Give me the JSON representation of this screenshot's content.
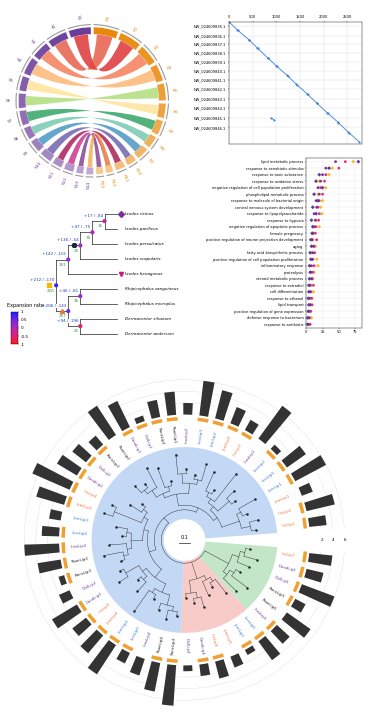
{
  "chart_data": [
    {
      "type": "chord",
      "left": {
        "labels": [
          "S1",
          "S2",
          "S3",
          "S4",
          "S5",
          "S6",
          "S7",
          "S8",
          "S9",
          "S10",
          "S11",
          "S12",
          "S13",
          "S14"
        ],
        "lengths": [
          9,
          8,
          7,
          7,
          6,
          6,
          6,
          5,
          5,
          5,
          4,
          4,
          3,
          3
        ],
        "color": "#6a3d9a"
      },
      "right": {
        "labels": [
          "R1",
          "R2",
          "R3",
          "R4",
          "R5",
          "R6",
          "R7",
          "R8",
          "R9",
          "R10",
          "R11",
          "R12",
          "R13"
        ],
        "lengths": [
          10,
          9,
          8,
          7,
          7,
          6,
          6,
          5,
          5,
          4,
          4,
          3,
          3
        ],
        "color": "#e8890c"
      },
      "links": [
        {
          "from": "S1",
          "to": "R2",
          "color": "#d7191c"
        },
        {
          "from": "S2",
          "to": "R1",
          "color": "#e34a33"
        },
        {
          "from": "S3",
          "to": "R3",
          "color": "#f46d43"
        },
        {
          "from": "S4",
          "to": "R4",
          "color": "#fdae61"
        },
        {
          "from": "S5",
          "to": "R6",
          "color": "#fee08b"
        },
        {
          "from": "S6",
          "to": "R5",
          "color": "#a6d96a"
        },
        {
          "from": "S7",
          "to": "R7",
          "color": "#1a9850"
        },
        {
          "from": "S8",
          "to": "R8",
          "color": "#66c2a5"
        },
        {
          "from": "S9",
          "to": "R9",
          "color": "#3288bd"
        },
        {
          "from": "S10",
          "to": "R10",
          "color": "#5e4fa2"
        },
        {
          "from": "S11",
          "to": "R11",
          "color": "#9e0142"
        },
        {
          "from": "S12",
          "to": "R12",
          "color": "#c51b7d"
        },
        {
          "from": "S13",
          "to": "R13",
          "color": "#762a83"
        },
        {
          "from": "S14",
          "to": "R12",
          "color": "#f1a340"
        }
      ]
    },
    {
      "type": "dotplot",
      "color": "#3b7fd9",
      "grid": true,
      "segments": [
        [
          0,
          180,
          0,
          190
        ],
        [
          190,
          420,
          200,
          410
        ],
        [
          430,
          600,
          420,
          600
        ],
        [
          610,
          820,
          610,
          830
        ],
        [
          830,
          1000,
          840,
          1010
        ],
        [
          1010,
          1230,
          1020,
          1230
        ],
        [
          1240,
          1420,
          1240,
          1430
        ],
        [
          1430,
          1650,
          1440,
          1650
        ],
        [
          1660,
          1850,
          1660,
          1860
        ],
        [
          1860,
          2080,
          1870,
          2090
        ],
        [
          2090,
          2300,
          2100,
          2300
        ],
        [
          2310,
          2520,
          2310,
          2530
        ],
        [
          2530,
          2750,
          2540,
          2750
        ],
        [
          900,
          960,
          2200,
          2260
        ]
      ],
      "xlim": [
        0,
        2800
      ],
      "xticks": [
        0,
        500,
        1000,
        1500,
        2000,
        2500
      ],
      "ylim": [
        2800,
        0
      ],
      "yticks": [
        {
          "value": 100,
          "label": "NW_024609835.1"
        },
        {
          "value": 320,
          "label": "NW_024609836.1"
        },
        {
          "value": 520,
          "label": "NW_024609837.1"
        },
        {
          "value": 720,
          "label": "NW_024609838.1"
        },
        {
          "value": 930,
          "label": "NW_024609839.1"
        },
        {
          "value": 1130,
          "label": "NW_024609840.1"
        },
        {
          "value": 1340,
          "label": "NW_024609841.1"
        },
        {
          "value": 1550,
          "label": "NW_024609842.1"
        },
        {
          "value": 1760,
          "label": "NW_024609843.1"
        },
        {
          "value": 1980,
          "label": "NW_024609844.1"
        },
        {
          "value": 2200,
          "label": "NW_024609845.1"
        },
        {
          "value": 2420,
          "label": "NW_024609846.1"
        }
      ]
    },
    {
      "type": "tree",
      "colorbar": {
        "title": "Expansion rate",
        "range": [
          -1,
          1
        ],
        "ticks": [
          1,
          0.5,
          0,
          -0.5,
          -1
        ],
        "colors": [
          "#ff1a1a",
          "#d6248f",
          "#8e2bd6",
          "#1f1fff"
        ]
      },
      "tree": {
        "gain_loss": "+212 / -170",
        "count": 226,
        "rate": 0.8,
        "marker": "square",
        "color": "#f5b800",
        "children": [
          {
            "gain_loss": "+142 / -101",
            "count": 151,
            "rate": 0.3,
            "children": [
              {
                "gain_loss": "+136 / -54",
                "count": 25,
                "rate": 0.2,
                "marker": "circle",
                "color": "#1c2541",
                "children": [
                  {
                    "gain_loss": "+47 / -75",
                    "count": 76,
                    "rate": 0.1,
                    "children": [
                      {
                        "gain_loss": "+17 / -84",
                        "count": 16,
                        "rate": -0.1,
                        "children": [
                          {
                            "name": "Ixodes ricinus",
                            "marker": "diamond",
                            "color": "#7b3294"
                          },
                          {
                            "name": "Ixodes pacificus"
                          }
                        ]
                      },
                      {
                        "name": "Ixodes persulcatus"
                      }
                    ]
                  },
                  {
                    "name": "Ixodes scapularis"
                  }
                ]
              },
              {
                "name": "Ixodes hexagonus",
                "marker": "triangle_down",
                "color": "#c51b7d"
              }
            ]
          },
          {
            "gain_loss": "+206 / -143",
            "count": 257,
            "rate": 0.5,
            "marker": "triangle",
            "color": "#e8743b",
            "children": [
              {
                "gain_loss": "+46 / -81",
                "count": 16,
                "rate": 0.2,
                "children": [
                  {
                    "name": "Rhipicephalus sanguineus"
                  },
                  {
                    "name": "Rhipicephalus microplus"
                  }
                ]
              },
              {
                "gain_loss": "+94 / -196",
                "count": 21,
                "rate": -0.5,
                "children": [
                  {
                    "name": "Dermacentor silvarum"
                  },
                  {
                    "name": "Dermacentor andersoni"
                  }
                ]
              }
            ]
          }
        ]
      }
    },
    {
      "type": "scatter",
      "orientation": "horizontal",
      "grid": true,
      "categories": [
        "lipid metabolic process",
        "response to xenobiotic stimulus",
        "response to toxic substance",
        "response to oxidative stress",
        "negative regulation of cell population proliferation",
        "phospholipid metabolic process",
        "response to molecule of bacterial origin",
        "central nervous system development",
        "response to lipopolysaccharide",
        "response to hypoxia",
        "negative regulation of apoptotic process",
        "female pregnancy",
        "positive regulation of neuron projection development",
        "aging",
        "fatty acid biosynthetic process",
        "positive regulation of cell population proliferation",
        "inflammatory response",
        "proteolysis",
        "steroid metabolic process",
        "response to estradiol",
        "cell differentiation",
        "response to ethanol",
        "lipid transport",
        "positive regulation of gene expression",
        "defense response to bacterium",
        "response to antibiotic"
      ],
      "series": [
        {
          "color": "#f2c12e",
          "marker": "diamond",
          "values": [
            72,
            40,
            35,
            20,
            30,
            18,
            25,
            22,
            24,
            15,
            20,
            12,
            10,
            14,
            9,
            16,
            18,
            12,
            10,
            8,
            11,
            9,
            7,
            6,
            8,
            5
          ]
        },
        {
          "color": "#e7298a",
          "marker": "circle",
          "values": [
            60,
            50,
            30,
            28,
            22,
            25,
            20,
            18,
            20,
            19,
            15,
            14,
            16,
            12,
            13,
            10,
            12,
            10,
            9,
            11,
            7,
            8,
            9,
            7,
            5,
            6
          ]
        },
        {
          "color": "#7b3294",
          "marker": "circle",
          "values": [
            45,
            30,
            25,
            22,
            18,
            20,
            15,
            16,
            12,
            14,
            12,
            10,
            9,
            11,
            10,
            9,
            8,
            7,
            8,
            6,
            6,
            5,
            6,
            4,
            4,
            3
          ]
        },
        {
          "color": "#5e3c99",
          "marker": "diamond",
          "values": [
            80,
            35,
            20,
            15,
            25,
            12,
            18,
            10,
            15,
            8,
            10,
            9,
            7,
            8,
            6,
            7,
            5,
            6,
            5,
            4,
            4,
            3,
            4,
            3,
            2,
            2
          ]
        }
      ],
      "xlim": [
        0,
        85
      ],
      "xticks": [
        0,
        25,
        50,
        75
      ]
    },
    {
      "type": "circular_tree",
      "leaves": [
        "IricLip1",
        "IricLip2",
        "IpacLip1",
        "IperLip1",
        "IscaLip1",
        "IscaLip2",
        "IhexLip1",
        "IricLip3",
        "IpacLip2",
        "IperLip2",
        "IscaLip3",
        "IhexLip2",
        "RsanLip1",
        "RmicLip1",
        "DsilLip1",
        "DandLip1",
        "RsanLip2",
        "RmicLip2",
        "DsilLip2",
        "DandLip2",
        "IricLip4",
        "IpacLip3",
        "IperLip3",
        "IscaLip4",
        "IhexLip3",
        "RsanLip3",
        "RmicLip3",
        "DsilLip3",
        "DandLip3",
        "IricLip5",
        "IpacLip4",
        "IperLip4",
        "IscaLip5",
        "IhexLip4",
        "RsanLip4",
        "RmicLip4",
        "DsilLip4",
        "DandLip4",
        "IricLip6",
        "IpacLip5",
        "IperLip5",
        "IscaLip6",
        "IhexLip5",
        "RsanLip5",
        "RmicLip5",
        "DsilLip5",
        "DandLip5",
        "IricLip7"
      ],
      "label_colors": [
        "#e8743b",
        "#e8743b",
        "#e8743b",
        "#3a7bd5",
        "#3a7bd5",
        "#3a7bd5",
        "#6a3d9a",
        "#e8743b",
        "#e8743b",
        "#3a7bd5",
        "#3a7bd5",
        "#6a3d9a",
        "#222222",
        "#222222",
        "#6a3d9a",
        "#6a3d9a",
        "#222222",
        "#222222",
        "#6a3d9a",
        "#6a3d9a",
        "#e8743b",
        "#e8743b",
        "#3a7bd5",
        "#3a7bd5",
        "#6a3d9a",
        "#222222",
        "#222222",
        "#6a3d9a",
        "#6a3d9a",
        "#e8743b",
        "#e8743b",
        "#3a7bd5",
        "#3a7bd5",
        "#6a3d9a",
        "#222222",
        "#222222",
        "#6a3d9a",
        "#6a3d9a",
        "#e8743b",
        "#e8743b",
        "#3a7bd5",
        "#3a7bd5",
        "#6a3d9a",
        "#222222",
        "#222222",
        "#6a3d9a",
        "#6a3d9a",
        "#e8743b"
      ],
      "tips": [
        0.62,
        0.66,
        0.58,
        0.7,
        0.55,
        0.6,
        0.72,
        0.5,
        0.64,
        0.68,
        0.57,
        0.61,
        0.74,
        0.52,
        0.66,
        0.7,
        0.59,
        0.63,
        0.48,
        0.56,
        0.69,
        0.73,
        0.6,
        0.54,
        0.65,
        0.71,
        0.58,
        0.62,
        0.67,
        0.53,
        0.6,
        0.75,
        0.57,
        0.64,
        0.7,
        0.66,
        0.5,
        0.55,
        0.6,
        0.52,
        0.47,
        0.58,
        0.62,
        0.68,
        0.55,
        0.6,
        0.65,
        0.57
      ],
      "bars": [
        3,
        5,
        2,
        6,
        4,
        1,
        7,
        2,
        3,
        5,
        6,
        2,
        4,
        3,
        1,
        5,
        6,
        2,
        3,
        4,
        7,
        5,
        2,
        3,
        6,
        4,
        1,
        2,
        5,
        3,
        4,
        6,
        2,
        3,
        5,
        7,
        1,
        2,
        3,
        2,
        1,
        4,
        3,
        5,
        2,
        6,
        3,
        4
      ],
      "bar_color": "#333333",
      "bar_lim": [
        0,
        8
      ],
      "bar_ticks": [
        2,
        4,
        6
      ],
      "ring": [
        1,
        1,
        0,
        1,
        1,
        1,
        0,
        1,
        1,
        1,
        1,
        0,
        1,
        1,
        1,
        1,
        0,
        1,
        1,
        1,
        1,
        1,
        0,
        1,
        1,
        1,
        1,
        0,
        1,
        1,
        1,
        1,
        1,
        0,
        1,
        1,
        0,
        1,
        1,
        0,
        1,
        1,
        1,
        0,
        1,
        1,
        1,
        1
      ],
      "ring_color": "#f0a030",
      "clades": [
        {
          "start": 0,
          "end": 35,
          "color": "#a9c8f0"
        },
        {
          "start": 36,
          "end": 41,
          "color": "#f4b6b0"
        },
        {
          "start": 42,
          "end": 47,
          "color": "#a8dcb0"
        }
      ],
      "scale": 0.1
    }
  ]
}
